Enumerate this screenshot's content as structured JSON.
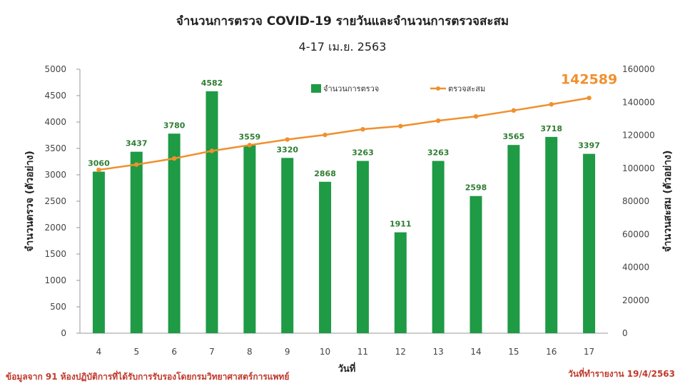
{
  "chart_data": {
    "type": "bar",
    "title": "จำนวนการตรวจ COVID-19 รายวันและจำนวนการตรวจสะสม",
    "subtitle": "4-17 เม.ย. 2563",
    "categories": [
      "4",
      "5",
      "6",
      "7",
      "8",
      "9",
      "10",
      "11",
      "12",
      "13",
      "14",
      "15",
      "16",
      "17"
    ],
    "series": [
      {
        "name": "จำนวนการตรวจ",
        "type": "bar",
        "axis": "left",
        "color": "#1f9a45",
        "values": [
          3060,
          3437,
          3780,
          4582,
          3559,
          3320,
          2868,
          3263,
          1911,
          3263,
          2598,
          3565,
          3718,
          3397
        ]
      },
      {
        "name": "ตรวจสะสม",
        "type": "line",
        "axis": "right",
        "color": "#f0902e",
        "values": [
          99000,
          102200,
          105900,
          110500,
          114000,
          117400,
          120200,
          123600,
          125500,
          128800,
          131400,
          135000,
          138700,
          142589
        ]
      }
    ],
    "highlight_label": "142589",
    "xlabel": "วันที่",
    "ylabel_left": "จำนวนตรวจ (ตัวอย่าง)",
    "ylabel_right": "จำนวนสะสม (ตัวอย่าง)",
    "ylim_left": [
      0,
      5000
    ],
    "ylim_right": [
      0,
      160000
    ],
    "yticks_left": [
      "0",
      "500",
      "1000",
      "1500",
      "2000",
      "2500",
      "3000",
      "3500",
      "4000",
      "4500",
      "5000"
    ],
    "yticks_right": [
      "0",
      "20000",
      "40000",
      "60000",
      "80000",
      "100000",
      "120000",
      "140000",
      "160000"
    ],
    "legend_position": "top-right",
    "grid": false
  },
  "footer": {
    "source": "ข้อมูลจาก 91 ห้องปฏิบัติการที่ได้รับการรับรองโดยกรมวิทยาศาสตร์การแพทย์",
    "report_date": "วันที่ทำรายงาน 19/4/2563"
  }
}
